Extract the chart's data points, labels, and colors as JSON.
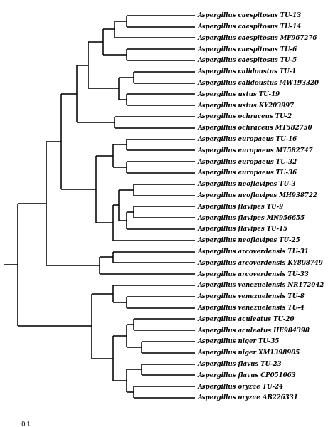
{
  "background_color": "#ffffff",
  "scale_bar_label": "0.1",
  "taxa": [
    "Aspergillus caespitosus TU-13",
    "Aspergillus caespitosus TU-14",
    "Aspergillus caespitosus MF967276",
    "Aspergillus caespitosus TU-6",
    "Aspergillus caespitosus TU-5",
    "Aspergillus calidoustus TU-1",
    "Aspergillus calidoustus MW193320",
    "Aspergillus ustus TU-19",
    "Aspergillus ustus KY203997",
    "Aspergillus ochraceus TU-2",
    "Aspergillus ochraceus MT582750",
    "Aspergillus europaeus TU-16",
    "Aspergillus europaeus MT582747",
    "Aspergillus europaeus TU-32",
    "Aspergillus europaeus TU-36",
    "Aspergillus neoflavipes TU-3",
    "Aspergillus neoflavipes MH938722",
    "Aspergillus flavipes TU-9",
    "Aspergillus flavipes MN956655",
    "Aspergillus flavipes TU-15",
    "Aspergillus neoflavipes TU-25",
    "Aspergillus arcoverdensis TU-31",
    "Aspergillus arcoverdensis KY808749",
    "Aspergillus arcoverdensis TU-33",
    "Aspergillus venezuelensis NR172042",
    "Aspergillus venezuelensis TU-8",
    "Aspergillus venezuelensis TU-4",
    "Aspergillus aculeatus TU-20",
    "Aspergillus aculeatus HE984398",
    "Aspergillus niger TU-35",
    "Aspergillus niger XM1398905",
    "Aspergillus flavus TU-23",
    "Aspergillus flavus CP051063",
    "Aspergillus oryzae TU-24",
    "Aspergillus oryzae AB226331"
  ],
  "text_color": "#000000",
  "line_color": "#000000",
  "font_size": 6.2,
  "line_width": 1.1
}
